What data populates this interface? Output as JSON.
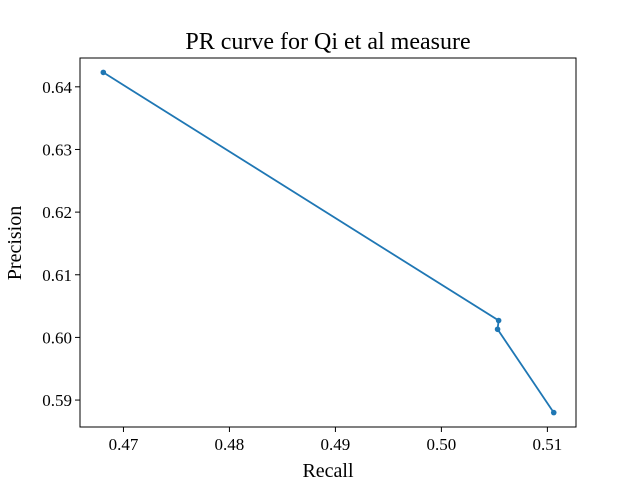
{
  "chart_data": {
    "type": "line",
    "title": "PR curve for Qi et al measure",
    "xlabel": "Recall",
    "ylabel": "Precision",
    "xlim": [
      0.4659,
      0.5127
    ],
    "ylim": [
      0.5857,
      0.6446
    ],
    "xticks": [
      0.47,
      0.48,
      0.49,
      0.5,
      0.51
    ],
    "xtick_labels": [
      "0.47",
      "0.48",
      "0.49",
      "0.50",
      "0.51"
    ],
    "yticks": [
      0.59,
      0.6,
      0.61,
      0.62,
      0.63,
      0.64
    ],
    "ytick_labels": [
      "0.59",
      "0.60",
      "0.61",
      "0.62",
      "0.63",
      "0.64"
    ],
    "grid": false,
    "color": "#1f77b4",
    "series": [
      {
        "x": [
          0.4681,
          0.5054,
          0.5053,
          0.5106
        ],
        "y": [
          0.6423,
          0.6027,
          0.6013,
          0.588
        ]
      }
    ]
  }
}
